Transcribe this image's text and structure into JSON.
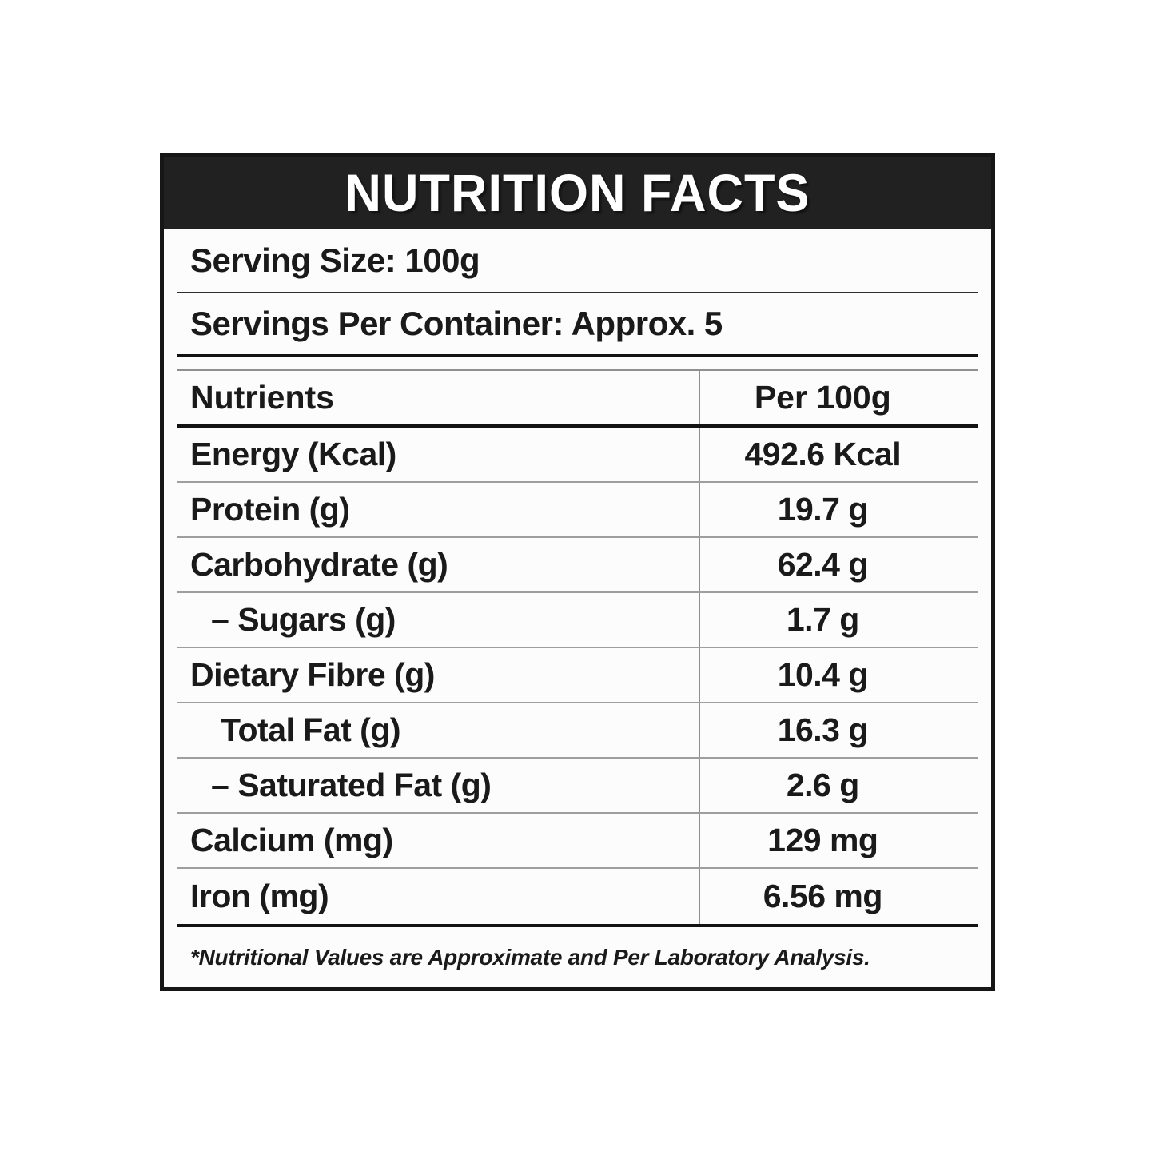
{
  "label": {
    "title": "NUTRITION FACTS",
    "serving_size": "Serving Size: 100g",
    "servings_per_container": "Servings Per Container: Approx. 5",
    "table": {
      "columns": {
        "nutrients": "Nutrients",
        "per_100g": "Per 100g"
      },
      "rows": [
        {
          "name": "Energy (Kcal)",
          "value": "492.6 Kcal",
          "indent": "none"
        },
        {
          "name": "Protein (g)",
          "value": "19.7 g",
          "indent": "none"
        },
        {
          "name": "Carbohydrate (g)",
          "value": "62.4 g",
          "indent": "none"
        },
        {
          "name": "– Sugars (g)",
          "value": "1.7 g",
          "indent": "dash"
        },
        {
          "name": "Dietary Fibre (g)",
          "value": "10.4 g",
          "indent": "none"
        },
        {
          "name": "Total Fat (g)",
          "value": "16.3 g",
          "indent": "sub"
        },
        {
          "name": "– Saturated Fat (g)",
          "value": "2.6 g",
          "indent": "dash"
        },
        {
          "name": "Calcium (mg)",
          "value": "129 mg",
          "indent": "none"
        },
        {
          "name": "Iron (mg)",
          "value": "6.56 mg",
          "indent": "none"
        }
      ]
    },
    "footnote": "*Nutritional Values are Approximate and Per Laboratory Analysis.",
    "colors": {
      "band_bg": "#212121",
      "text": "#1a1a1a",
      "thin_rule": "#8f8f8f",
      "thick_rule": "#131313",
      "border": "#161616"
    }
  }
}
